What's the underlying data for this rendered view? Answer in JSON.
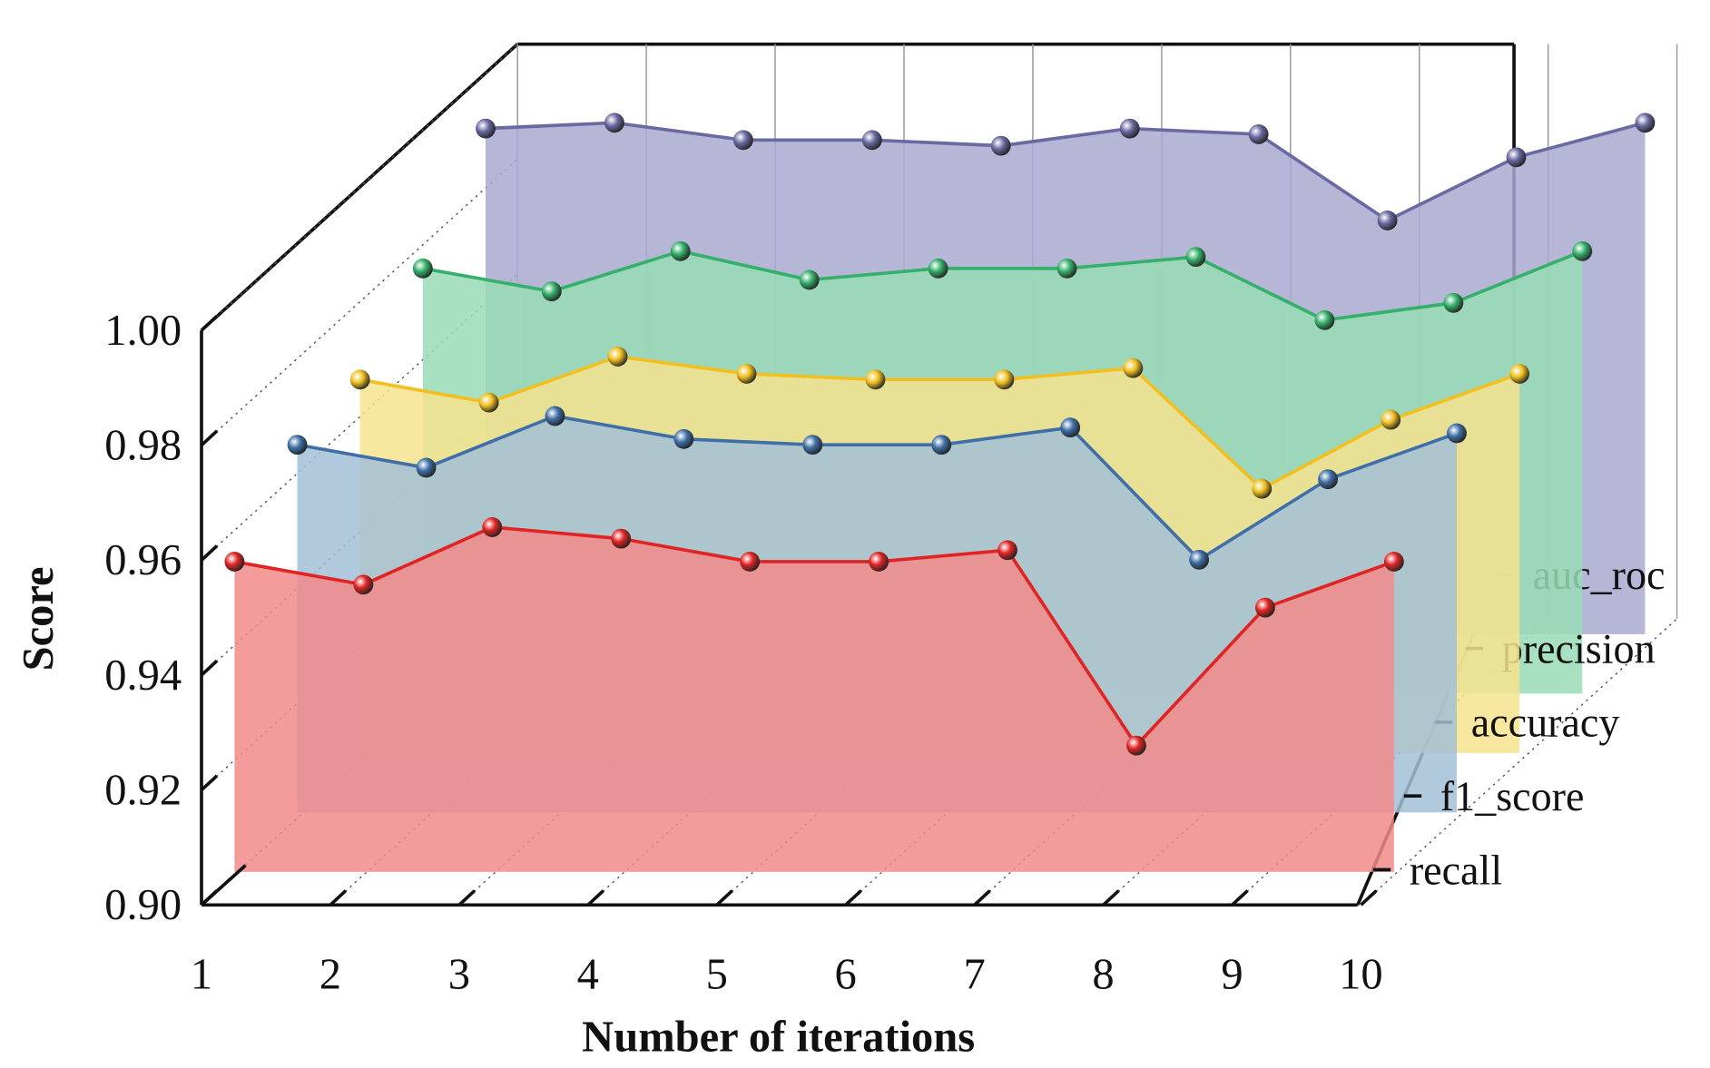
{
  "chart_data": {
    "type": "waterfall3d",
    "xlabel": "Number of iterations",
    "ylabel": "Score",
    "x": [
      1,
      2,
      3,
      4,
      5,
      6,
      7,
      8,
      9,
      10
    ],
    "xlim": [
      1,
      10
    ],
    "xticks": [
      1,
      2,
      3,
      4,
      5,
      6,
      7,
      8,
      9,
      10
    ],
    "ylim": [
      0.9,
      1.0
    ],
    "yticks": [
      {
        "value": 0.9,
        "label": "0.90"
      },
      {
        "value": 0.92,
        "label": "0.92"
      },
      {
        "value": 0.94,
        "label": "0.94"
      },
      {
        "value": 0.96,
        "label": "0.96"
      },
      {
        "value": 0.98,
        "label": "0.98"
      },
      {
        "value": 1.0,
        "label": "1.00"
      }
    ],
    "series": [
      {
        "name": "recall",
        "color": "#e02424",
        "fill": "#f28a8a",
        "values": [
          0.954,
          0.95,
          0.96,
          0.958,
          0.954,
          0.954,
          0.956,
          0.922,
          0.946,
          0.954
        ]
      },
      {
        "name": "f1_score",
        "color": "#3f6fa6",
        "fill": "#a2bfd6",
        "values": [
          0.964,
          0.96,
          0.969,
          0.965,
          0.964,
          0.964,
          0.967,
          0.944,
          0.958,
          0.966
        ]
      },
      {
        "name": "accuracy",
        "color": "#f0c020",
        "fill": "#f6e38e",
        "values": [
          0.965,
          0.961,
          0.969,
          0.966,
          0.965,
          0.965,
          0.967,
          0.946,
          0.958,
          0.966
        ]
      },
      {
        "name": "precision",
        "color": "#35b06a",
        "fill": "#98dcb6",
        "values": [
          0.974,
          0.97,
          0.977,
          0.972,
          0.974,
          0.974,
          0.976,
          0.965,
          0.968,
          0.977
        ]
      },
      {
        "name": "auc_roc",
        "color": "#6a6aa2",
        "fill": "#a9a9d0",
        "values": [
          0.988,
          0.989,
          0.986,
          0.986,
          0.985,
          0.988,
          0.987,
          0.972,
          0.983,
          0.989
        ]
      }
    ]
  }
}
